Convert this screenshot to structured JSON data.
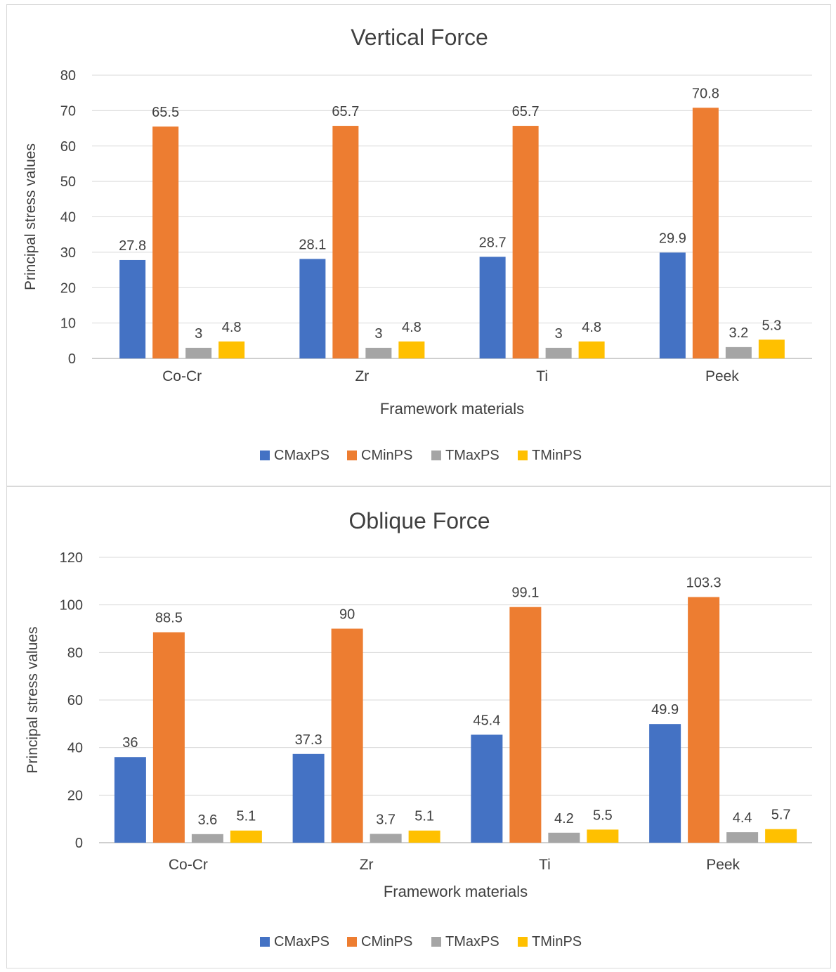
{
  "chart_data": [
    {
      "type": "bar",
      "title": "Vertical Force",
      "xlabel": "Framework materials",
      "ylabel": "Principal stress values",
      "ylim": [
        0,
        80
      ],
      "yticks": [
        0,
        10,
        20,
        30,
        40,
        50,
        60,
        70,
        80
      ],
      "grid": true,
      "legend_position": "bottom",
      "categories": [
        "Co-Cr",
        "Zr",
        "Ti",
        "Peek"
      ],
      "series": [
        {
          "name": "CMaxPS",
          "color": "#4472c4",
          "values": [
            27.8,
            28.1,
            28.7,
            29.9
          ]
        },
        {
          "name": "CMinPS",
          "color": "#ed7d31",
          "values": [
            65.5,
            65.7,
            65.7,
            70.8
          ]
        },
        {
          "name": "TMaxPS",
          "color": "#a5a5a5",
          "values": [
            3,
            3,
            3,
            3.2
          ]
        },
        {
          "name": "TMinPS",
          "color": "#ffc000",
          "values": [
            4.8,
            4.8,
            4.8,
            5.3
          ]
        }
      ]
    },
    {
      "type": "bar",
      "title": "Oblique Force",
      "xlabel": "Framework materials",
      "ylabel": "Principal stress values",
      "ylim": [
        0,
        120
      ],
      "yticks": [
        0,
        20,
        40,
        60,
        80,
        100,
        120
      ],
      "grid": true,
      "legend_position": "bottom",
      "categories": [
        "Co-Cr",
        "Zr",
        "Ti",
        "Peek"
      ],
      "series": [
        {
          "name": "CMaxPS",
          "color": "#4472c4",
          "values": [
            36,
            37.3,
            45.4,
            49.9
          ]
        },
        {
          "name": "CMinPS",
          "color": "#ed7d31",
          "values": [
            88.5,
            90,
            99.1,
            103.3
          ]
        },
        {
          "name": "TMaxPS",
          "color": "#a5a5a5",
          "values": [
            3.6,
            3.7,
            4.2,
            4.4
          ]
        },
        {
          "name": "TMinPS",
          "color": "#ffc000",
          "values": [
            5.1,
            5.1,
            5.5,
            5.7
          ]
        }
      ]
    }
  ]
}
